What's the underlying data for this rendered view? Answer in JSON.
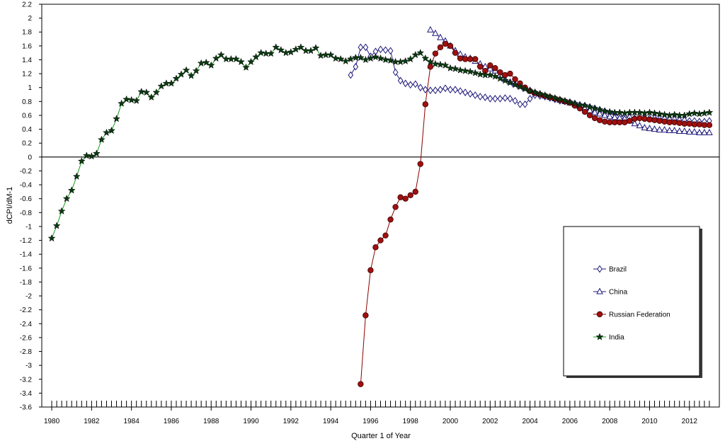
{
  "chart_data": {
    "type": "line",
    "title": "",
    "xlabel": "Quarter 1 of Year",
    "ylabel": "dCPI/dM-1",
    "xlim": [
      1979.5,
      2013.5
    ],
    "ylim": [
      -3.6,
      2.2
    ],
    "yticks": [
      2.2,
      2,
      1.8,
      1.6,
      1.4,
      1.2,
      1,
      0.8,
      0.6,
      0.4,
      0.2,
      0,
      -0.2,
      -0.4,
      -0.6,
      -0.8,
      -1,
      -1.2,
      -1.4,
      -1.6,
      -1.8,
      -2,
      -2.2,
      -2.4,
      -2.6,
      -2.8,
      -3,
      -3.2,
      -3.4,
      -3.6
    ],
    "ytick_labels": [
      "2.2",
      "2",
      "1.8",
      "1.6",
      "1.4",
      "1.2",
      "1",
      "0.8",
      "0.6",
      "0.4",
      "0.2",
      "0",
      "-0.2",
      "-0.4",
      "-0.6",
      "-0.8",
      "-1",
      "-1.2",
      "-1.4",
      "-1.6",
      "-1.8",
      "-2",
      "-2.2",
      "-2.4",
      "-2.6",
      "-2.8",
      "-3",
      "-3.2",
      "-3.4",
      "-3.6"
    ],
    "xticks": [
      1980,
      1982,
      1984,
      1986,
      1988,
      1990,
      1992,
      1994,
      1996,
      1998,
      2000,
      2002,
      2004,
      2006,
      2008,
      2010,
      2012
    ],
    "xtick_labels": [
      "1980",
      "1982",
      "1984",
      "1986",
      "1988",
      "1990",
      "1992",
      "1994",
      "1996",
      "1998",
      "2000",
      "2002",
      "2004",
      "2006",
      "2008",
      "2010",
      "2012"
    ],
    "grid": false,
    "zero_line": true,
    "legend_position": "right-lower",
    "series": [
      {
        "name": "Brazil",
        "color": "#1f1a7a",
        "marker": "diamond",
        "x": [
          1995.0,
          1995.25,
          1995.5,
          1995.75,
          1996.0,
          1996.25,
          1996.5,
          1996.75,
          1997.0,
          1997.25,
          1997.5,
          1997.75,
          1998.0,
          1998.25,
          1998.5,
          1998.75,
          1999.0,
          1999.25,
          1999.5,
          1999.75,
          2000.0,
          2000.25,
          2000.5,
          2000.75,
          2001.0,
          2001.25,
          2001.5,
          2001.75,
          2002.0,
          2002.25,
          2002.5,
          2002.75,
          2003.0,
          2003.25,
          2003.5,
          2003.75,
          2004.0,
          2004.25,
          2004.5,
          2004.75,
          2005.0,
          2005.25,
          2005.5,
          2005.75,
          2006.0,
          2006.25,
          2006.5,
          2006.75,
          2007.0,
          2007.25,
          2007.5,
          2007.75,
          2008.0,
          2008.25,
          2008.5,
          2008.75,
          2009.0,
          2009.25,
          2009.5,
          2009.75,
          2010.0,
          2010.25,
          2010.5,
          2010.75,
          2011.0,
          2011.25,
          2011.5,
          2011.75,
          2012.0,
          2012.25,
          2012.5,
          2012.75,
          2013.0
        ],
        "values": [
          1.18,
          1.3,
          1.58,
          1.58,
          1.45,
          1.52,
          1.55,
          1.54,
          1.53,
          1.22,
          1.1,
          1.06,
          1.04,
          1.05,
          1.0,
          0.97,
          0.96,
          0.96,
          0.97,
          0.99,
          0.97,
          0.97,
          0.95,
          0.93,
          0.91,
          0.89,
          0.87,
          0.86,
          0.84,
          0.84,
          0.84,
          0.85,
          0.84,
          0.81,
          0.76,
          0.76,
          0.84,
          0.89,
          0.88,
          0.87,
          0.85,
          0.83,
          0.81,
          0.8,
          0.79,
          0.77,
          0.75,
          0.74,
          0.72,
          0.7,
          0.68,
          0.66,
          0.64,
          0.62,
          0.6,
          0.58,
          0.57,
          0.56,
          0.56,
          0.56,
          0.56,
          0.56,
          0.55,
          0.55,
          0.54,
          0.54,
          0.53,
          0.53,
          0.52,
          0.52,
          0.51,
          0.51,
          0.52
        ]
      },
      {
        "name": "China",
        "color": "#1f1a7a",
        "marker": "triangle",
        "x": [
          1999.0,
          1999.25,
          1999.5,
          1999.75,
          2000.0,
          2000.25,
          2000.5,
          2000.75,
          2001.0,
          2001.25,
          2001.5,
          2001.75,
          2002.0,
          2002.25,
          2002.5,
          2002.75,
          2003.0,
          2003.25,
          2003.5,
          2003.75,
          2004.0,
          2004.25,
          2004.5,
          2004.75,
          2005.0,
          2005.25,
          2005.5,
          2005.75,
          2006.0,
          2006.25,
          2006.5,
          2006.75,
          2007.0,
          2007.25,
          2007.5,
          2007.75,
          2008.0,
          2008.25,
          2008.5,
          2008.75,
          2009.0,
          2009.25,
          2009.5,
          2009.75,
          2010.0,
          2010.25,
          2010.5,
          2010.75,
          2011.0,
          2011.25,
          2011.5,
          2011.75,
          2012.0,
          2012.25,
          2012.5,
          2012.75,
          2013.0
        ],
        "values": [
          1.83,
          1.78,
          1.72,
          1.67,
          1.6,
          1.53,
          1.48,
          1.44,
          1.42,
          1.38,
          1.34,
          1.3,
          1.27,
          1.24,
          1.18,
          1.12,
          1.08,
          1.05,
          1.02,
          0.99,
          0.96,
          0.93,
          0.91,
          0.88,
          0.86,
          0.84,
          0.82,
          0.8,
          0.78,
          0.76,
          0.73,
          0.7,
          0.67,
          0.64,
          0.62,
          0.6,
          0.58,
          0.57,
          0.56,
          0.55,
          0.52,
          0.48,
          0.45,
          0.42,
          0.41,
          0.4,
          0.39,
          0.39,
          0.38,
          0.38,
          0.37,
          0.37,
          0.36,
          0.36,
          0.35,
          0.35,
          0.35
        ]
      },
      {
        "name": "Russian Federation",
        "color": "#8b0000",
        "marker": "circle",
        "x": [
          1995.5,
          1995.75,
          1996.0,
          1996.25,
          1996.5,
          1996.75,
          1997.0,
          1997.25,
          1997.5,
          1997.75,
          1998.0,
          1998.25,
          1998.5,
          1998.75,
          1999.0,
          1999.25,
          1999.5,
          1999.75,
          2000.0,
          2000.25,
          2000.5,
          2000.75,
          2001.0,
          2001.25,
          2001.5,
          2001.75,
          2002.0,
          2002.25,
          2002.5,
          2002.75,
          2003.0,
          2003.25,
          2003.5,
          2003.75,
          2004.0,
          2004.25,
          2004.5,
          2004.75,
          2005.0,
          2005.25,
          2005.5,
          2005.75,
          2006.0,
          2006.25,
          2006.5,
          2006.75,
          2007.0,
          2007.25,
          2007.5,
          2007.75,
          2008.0,
          2008.25,
          2008.5,
          2008.75,
          2009.0,
          2009.25,
          2009.5,
          2009.75,
          2010.0,
          2010.25,
          2010.5,
          2010.75,
          2011.0,
          2011.25,
          2011.5,
          2011.75,
          2012.0,
          2012.25,
          2012.5,
          2012.75,
          2013.0
        ],
        "values": [
          -3.27,
          -2.28,
          -1.63,
          -1.3,
          -1.2,
          -1.13,
          -0.9,
          -0.72,
          -0.58,
          -0.6,
          -0.55,
          -0.5,
          -0.1,
          0.76,
          1.3,
          1.49,
          1.58,
          1.63,
          1.6,
          1.5,
          1.42,
          1.41,
          1.41,
          1.41,
          1.3,
          1.24,
          1.32,
          1.28,
          1.22,
          1.18,
          1.2,
          1.12,
          1.06,
          1.0,
          0.95,
          0.92,
          0.9,
          0.88,
          0.86,
          0.84,
          0.82,
          0.8,
          0.78,
          0.74,
          0.7,
          0.65,
          0.6,
          0.56,
          0.53,
          0.51,
          0.5,
          0.5,
          0.5,
          0.5,
          0.52,
          0.55,
          0.56,
          0.55,
          0.54,
          0.53,
          0.52,
          0.51,
          0.5,
          0.5,
          0.49,
          0.48,
          0.48,
          0.47,
          0.47,
          0.46,
          0.46
        ]
      },
      {
        "name": "India",
        "color": "#0b3a12",
        "marker": "star",
        "x": [
          1980.0,
          1980.25,
          1980.5,
          1980.75,
          1981.0,
          1981.25,
          1981.5,
          1981.75,
          1982.0,
          1982.25,
          1982.5,
          1982.75,
          1983.0,
          1983.25,
          1983.5,
          1983.75,
          1984.0,
          1984.25,
          1984.5,
          1984.75,
          1985.0,
          1985.25,
          1985.5,
          1985.75,
          1986.0,
          1986.25,
          1986.5,
          1986.75,
          1987.0,
          1987.25,
          1987.5,
          1987.75,
          1988.0,
          1988.25,
          1988.5,
          1988.75,
          1989.0,
          1989.25,
          1989.5,
          1989.75,
          1990.0,
          1990.25,
          1990.5,
          1990.75,
          1991.0,
          1991.25,
          1991.5,
          1991.75,
          1992.0,
          1992.25,
          1992.5,
          1992.75,
          1993.0,
          1993.25,
          1993.5,
          1993.75,
          1994.0,
          1994.25,
          1994.5,
          1994.75,
          1995.0,
          1995.25,
          1995.5,
          1995.75,
          1996.0,
          1996.25,
          1996.5,
          1996.75,
          1997.0,
          1997.25,
          1997.5,
          1997.75,
          1998.0,
          1998.25,
          1998.5,
          1998.75,
          1999.0,
          1999.25,
          1999.5,
          1999.75,
          2000.0,
          2000.25,
          2000.5,
          2000.75,
          2001.0,
          2001.25,
          2001.5,
          2001.75,
          2002.0,
          2002.25,
          2002.5,
          2002.75,
          2003.0,
          2003.25,
          2003.5,
          2003.75,
          2004.0,
          2004.25,
          2004.5,
          2004.75,
          2005.0,
          2005.25,
          2005.5,
          2005.75,
          2006.0,
          2006.25,
          2006.5,
          2006.75,
          2007.0,
          2007.25,
          2007.5,
          2007.75,
          2008.0,
          2008.25,
          2008.5,
          2008.75,
          2009.0,
          2009.25,
          2009.5,
          2009.75,
          2010.0,
          2010.25,
          2010.5,
          2010.75,
          2011.0,
          2011.25,
          2011.5,
          2011.75,
          2012.0,
          2012.25,
          2012.5,
          2012.75,
          2013.0
        ],
        "values": [
          -1.17,
          -0.99,
          -0.78,
          -0.6,
          -0.48,
          -0.28,
          -0.06,
          0.02,
          0.01,
          0.05,
          0.25,
          0.35,
          0.38,
          0.55,
          0.77,
          0.83,
          0.82,
          0.81,
          0.94,
          0.93,
          0.86,
          0.93,
          1.02,
          1.06,
          1.06,
          1.13,
          1.19,
          1.25,
          1.17,
          1.24,
          1.35,
          1.36,
          1.32,
          1.42,
          1.47,
          1.41,
          1.41,
          1.41,
          1.37,
          1.29,
          1.37,
          1.44,
          1.5,
          1.49,
          1.49,
          1.58,
          1.54,
          1.5,
          1.51,
          1.55,
          1.58,
          1.53,
          1.53,
          1.57,
          1.46,
          1.47,
          1.47,
          1.42,
          1.41,
          1.38,
          1.41,
          1.43,
          1.43,
          1.4,
          1.42,
          1.44,
          1.42,
          1.4,
          1.39,
          1.37,
          1.37,
          1.38,
          1.41,
          1.47,
          1.5,
          1.42,
          1.37,
          1.34,
          1.33,
          1.32,
          1.28,
          1.27,
          1.25,
          1.24,
          1.23,
          1.21,
          1.19,
          1.18,
          1.18,
          1.16,
          1.13,
          1.1,
          1.07,
          1.04,
          1.01,
          0.98,
          0.95,
          0.93,
          0.91,
          0.89,
          0.87,
          0.85,
          0.83,
          0.81,
          0.79,
          0.77,
          0.75,
          0.74,
          0.72,
          0.7,
          0.68,
          0.66,
          0.65,
          0.64,
          0.64,
          0.63,
          0.64,
          0.64,
          0.64,
          0.63,
          0.64,
          0.63,
          0.62,
          0.61,
          0.6,
          0.61,
          0.6,
          0.6,
          0.62,
          0.63,
          0.62,
          0.63,
          0.64
        ]
      }
    ]
  }
}
